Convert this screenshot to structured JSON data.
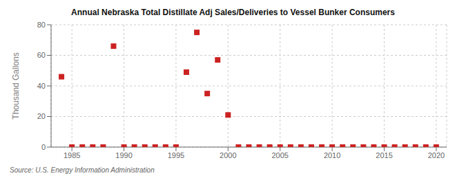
{
  "chart_data": {
    "type": "scatter",
    "title": "Annual Nebraska Total Distillate Adj Sales/Deliveries to Vessel Bunker Consumers",
    "ylabel": "Thousand Gallons",
    "annotation": "Source: U.S. Energy Information Administration",
    "x": [
      1984,
      1985,
      1986,
      1987,
      1988,
      1989,
      1990,
      1991,
      1992,
      1993,
      1994,
      1995,
      1996,
      1997,
      1998,
      1999,
      2000,
      2001,
      2002,
      2003,
      2004,
      2005,
      2006,
      2007,
      2008,
      2009,
      2010,
      2011,
      2012,
      2013,
      2014,
      2015,
      2016,
      2017,
      2018,
      2019,
      2020
    ],
    "values": [
      46,
      0,
      0,
      0,
      0,
      66,
      0,
      0,
      0,
      0,
      0,
      0,
      49,
      75,
      35,
      57,
      21,
      0,
      0,
      0,
      0,
      0,
      0,
      0,
      0,
      0,
      0,
      0,
      0,
      0,
      0,
      0,
      0,
      0,
      0,
      0,
      0
    ],
    "color": "#cc2222",
    "marker": "square",
    "xlim": [
      1983,
      2021
    ],
    "xticks": [
      1985,
      1990,
      1995,
      2000,
      2005,
      2010,
      2015,
      2020
    ],
    "ylim": [
      0,
      80
    ],
    "yticks": [
      0,
      20,
      40,
      60,
      80
    ],
    "grid": true
  }
}
